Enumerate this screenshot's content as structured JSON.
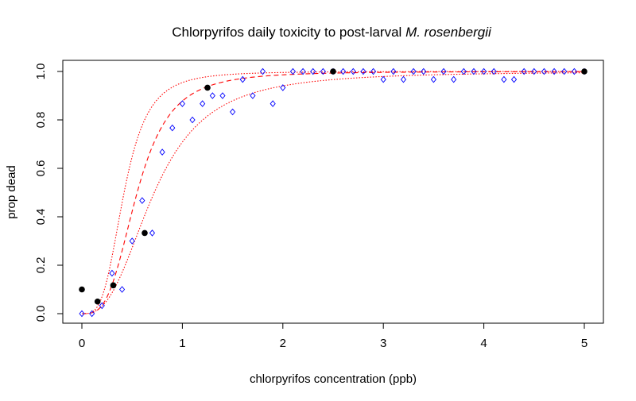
{
  "chart_data": {
    "type": "scatter",
    "title": "Chlorpyrifos daily toxicity to post-larval",
    "title_species": "M. rosenbergii",
    "xlabel": "chlorpyrifos concentration (ppb)",
    "ylabel": "prop dead",
    "xlim": [
      -0.2,
      5.2
    ],
    "ylim": [
      -0.04,
      1.04
    ],
    "xticks": [
      0,
      1,
      2,
      3,
      4,
      5
    ],
    "yticks": [
      0.0,
      0.2,
      0.4,
      0.6,
      0.8,
      1.0
    ],
    "ytick_labels": [
      "0.0",
      "0.2",
      "0.4",
      "0.6",
      "0.8",
      "1.0"
    ],
    "grid": false,
    "colors": {
      "observed": "#000000",
      "simulated": "#0000ff",
      "fit": "#ff0000"
    },
    "series": [
      {
        "style": "filled-circle",
        "x": [
          0,
          0.156,
          0.3125,
          0.625,
          1.25,
          2.5,
          5.0
        ],
        "y": [
          0.1,
          0.05,
          0.117,
          0.333,
          0.933,
          1.0,
          1.0
        ]
      },
      {
        "style": "open-diamond",
        "x": [
          0.0,
          0.1,
          0.2,
          0.3,
          0.4,
          0.5,
          0.6,
          0.7,
          0.8,
          0.9,
          1.0,
          1.1,
          1.2,
          1.3,
          1.4,
          1.5,
          1.6,
          1.7,
          1.8,
          1.9,
          2.0,
          2.1,
          2.2,
          2.3,
          2.4,
          2.5,
          2.6,
          2.7,
          2.8,
          2.9,
          3.0,
          3.1,
          3.2,
          3.3,
          3.4,
          3.5,
          3.6,
          3.7,
          3.8,
          3.9,
          4.0,
          4.1,
          4.2,
          4.3,
          4.4,
          4.5,
          4.6,
          4.7,
          4.8,
          4.9,
          5.0
        ],
        "y": [
          0.0,
          0.0,
          0.033,
          0.167,
          0.1,
          0.3,
          0.467,
          0.333,
          0.667,
          0.767,
          0.867,
          0.8,
          0.867,
          0.9,
          0.9,
          0.833,
          0.967,
          0.9,
          1.0,
          0.867,
          0.933,
          1.0,
          1.0,
          1.0,
          1.0,
          1.0,
          1.0,
          1.0,
          1.0,
          1.0,
          0.967,
          1.0,
          0.967,
          1.0,
          1.0,
          0.967,
          1.0,
          0.967,
          1.0,
          1.0,
          1.0,
          1.0,
          0.967,
          0.967,
          1.0,
          1.0,
          1.0,
          1.0,
          1.0,
          1.0,
          1.0
        ]
      }
    ],
    "fit_curves": [
      {
        "style": "dashed",
        "ld50": 0.55,
        "slope": 3.3
      },
      {
        "style": "dotted",
        "ld50": 0.42,
        "slope": 3.5
      },
      {
        "style": "dotted",
        "ld50": 0.72,
        "slope": 2.7
      }
    ]
  }
}
